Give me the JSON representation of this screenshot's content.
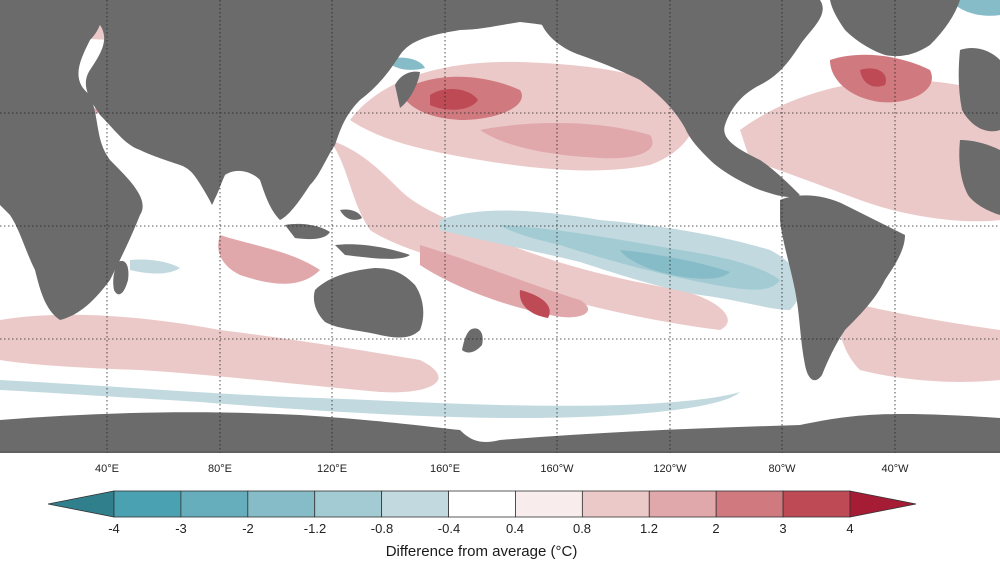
{
  "map": {
    "longitude_labels": [
      "40°E",
      "80°E",
      "120°E",
      "160°E",
      "160°W",
      "120°W",
      "80°W",
      "40°W"
    ],
    "land_color": "#6b6b6b",
    "ocean_color": "#ffffff",
    "graticule": "dotted"
  },
  "legend": {
    "title": "Difference from average (°C)",
    "ticks": [
      "-4",
      "-3",
      "-2",
      "-1.2",
      "-0.8",
      "-0.4",
      "0.4",
      "0.8",
      "1.2",
      "2",
      "3",
      "4"
    ],
    "colors": {
      "below_min": "#2f7f8c",
      "bins": [
        "#4aa1b2",
        "#66aebc",
        "#85bcc8",
        "#a3cbd3",
        "#c2dadf",
        "#ffffff",
        "#f8ecec",
        "#ecc9c9",
        "#e0a8aa",
        "#d07a7f",
        "#be4a55"
      ],
      "above_max": "#a71c35"
    }
  }
}
